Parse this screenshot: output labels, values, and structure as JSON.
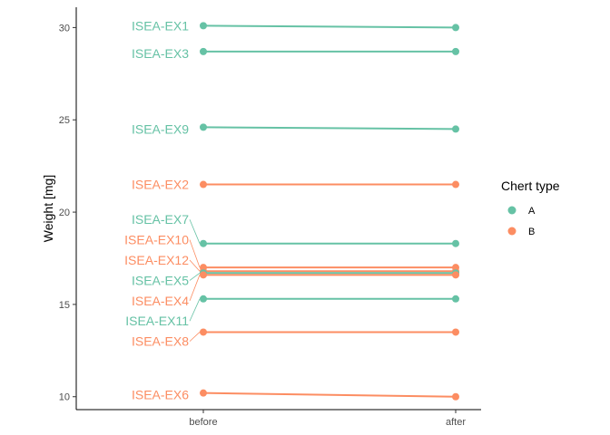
{
  "chart_data": {
    "type": "line",
    "title": "",
    "xlabel": "",
    "ylabel": "Weight [mg]",
    "categories": [
      "before",
      "after"
    ],
    "y_ticks": [
      10,
      15,
      20,
      25,
      30
    ],
    "ylim": [
      9.3,
      31.1
    ],
    "grid": false,
    "legend": {
      "title": "Chert type",
      "position": "right",
      "entries": [
        {
          "label": "A",
          "color": "#66c2a5"
        },
        {
          "label": "B",
          "color": "#fc8d62"
        }
      ]
    },
    "series": [
      {
        "name": "ISEA-EX1",
        "group": "A",
        "values": [
          30.1,
          30.0
        ]
      },
      {
        "name": "ISEA-EX3",
        "group": "A",
        "values": [
          28.7,
          28.7
        ]
      },
      {
        "name": "ISEA-EX9",
        "group": "A",
        "values": [
          24.6,
          24.5
        ]
      },
      {
        "name": "ISEA-EX2",
        "group": "B",
        "values": [
          21.5,
          21.5
        ]
      },
      {
        "name": "ISEA-EX7",
        "group": "A",
        "values": [
          18.3,
          18.3
        ]
      },
      {
        "name": "ISEA-EX10",
        "group": "B",
        "values": [
          17.0,
          17.0
        ]
      },
      {
        "name": "ISEA-EX12",
        "group": "B",
        "values": [
          16.8,
          16.8
        ]
      },
      {
        "name": "ISEA-EX5",
        "group": "A",
        "values": [
          16.7,
          16.7
        ]
      },
      {
        "name": "ISEA-EX4",
        "group": "B",
        "values": [
          16.6,
          16.6
        ]
      },
      {
        "name": "ISEA-EX11",
        "group": "A",
        "values": [
          15.3,
          15.3
        ]
      },
      {
        "name": "ISEA-EX8",
        "group": "B",
        "values": [
          13.5,
          13.5
        ]
      },
      {
        "name": "ISEA-EX6",
        "group": "B",
        "values": [
          10.2,
          10.0
        ]
      }
    ],
    "label_positions_data": [
      30.1,
      28.6,
      24.5,
      21.5,
      19.6,
      18.5,
      17.4,
      16.3,
      15.2,
      14.1,
      13.0,
      10.1
    ]
  }
}
